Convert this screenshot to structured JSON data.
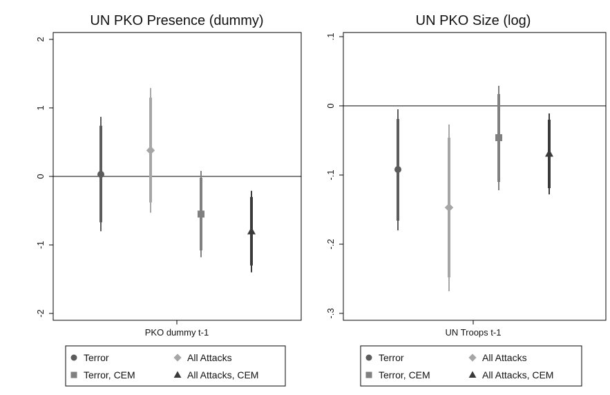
{
  "chart_data": [
    {
      "type": "scatter",
      "subtype": "coefficient-plot-with-confidence-intervals",
      "title": "UN PKO Presence (dummy)",
      "xlabel": "PKO dummy t-1",
      "ylabel": "",
      "ylim": [
        -2.1,
        2.1
      ],
      "yticks": [
        2,
        1,
        0,
        -1,
        -2
      ],
      "ytick_labels": [
        "2",
        "1",
        "0",
        "-1",
        "-2"
      ],
      "reference_line": 0,
      "grid": false,
      "legend": "bottom",
      "series": [
        {
          "name": "Terror",
          "marker": "circle",
          "color": "#5c5c5c",
          "estimate": 0.03,
          "ci_inner": [
            -0.67,
            0.74
          ],
          "ci_outer": [
            -0.8,
            0.87
          ]
        },
        {
          "name": "All Attacks",
          "marker": "diamond",
          "color": "#a6a6a6",
          "estimate": 0.38,
          "ci_inner": [
            -0.38,
            1.15
          ],
          "ci_outer": [
            -0.53,
            1.29
          ]
        },
        {
          "name": "Terror, CEM",
          "marker": "square",
          "color": "#808080",
          "estimate": -0.55,
          "ci_inner": [
            -1.08,
            -0.02
          ],
          "ci_outer": [
            -1.18,
            0.08
          ]
        },
        {
          "name": "All Attacks, CEM",
          "marker": "triangle",
          "color": "#3a3a3a",
          "estimate": -0.8,
          "ci_inner": [
            -1.3,
            -0.3
          ],
          "ci_outer": [
            -1.4,
            -0.21
          ]
        }
      ]
    },
    {
      "type": "scatter",
      "subtype": "coefficient-plot-with-confidence-intervals",
      "title": "UN PKO Size (log)",
      "xlabel": "UN Troops t-1",
      "ylabel": "",
      "ylim": [
        -0.31,
        0.106
      ],
      "yticks": [
        0.1,
        0,
        -0.1,
        -0.2,
        -0.3
      ],
      "ytick_labels": [
        ".1",
        "0",
        "-.1",
        "-.2",
        "-.3"
      ],
      "reference_line": 0,
      "grid": false,
      "legend": "bottom",
      "series": [
        {
          "name": "Terror",
          "marker": "circle",
          "color": "#5c5c5c",
          "estimate": -0.092,
          "ci_inner": [
            -0.166,
            -0.019
          ],
          "ci_outer": [
            -0.18,
            -0.005
          ]
        },
        {
          "name": "All Attacks",
          "marker": "diamond",
          "color": "#a6a6a6",
          "estimate": -0.147,
          "ci_inner": [
            -0.248,
            -0.046
          ],
          "ci_outer": [
            -0.268,
            -0.027
          ]
        },
        {
          "name": "Terror, CEM",
          "marker": "square",
          "color": "#808080",
          "estimate": -0.046,
          "ci_inner": [
            -0.11,
            0.017
          ],
          "ci_outer": [
            -0.122,
            0.029
          ]
        },
        {
          "name": "All Attacks, CEM",
          "marker": "triangle",
          "color": "#3a3a3a",
          "estimate": -0.069,
          "ci_inner": [
            -0.119,
            -0.02
          ],
          "ci_outer": [
            -0.128,
            -0.011
          ]
        }
      ]
    }
  ],
  "legend_layout": [
    [
      "Terror",
      "All Attacks"
    ],
    [
      "Terror, CEM",
      "All Attacks, CEM"
    ]
  ]
}
